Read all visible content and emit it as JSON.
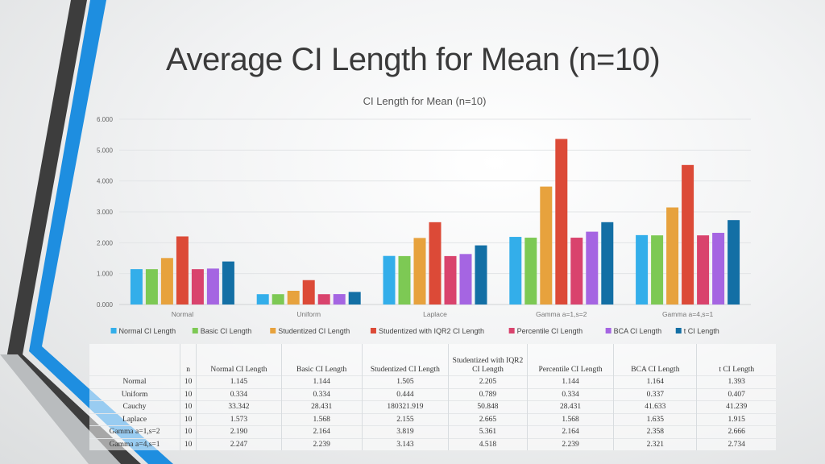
{
  "slide": {
    "title": "Average CI Length for Mean (n=10)"
  },
  "colors": {
    "normal": "#33aeea",
    "basic": "#7dc954",
    "studentized": "#e7a23d",
    "studentized_iqr": "#dc4a37",
    "percentile": "#d9436d",
    "bca": "#a565e2",
    "t": "#136fa5",
    "stripe_dark": "#3d3d3d",
    "stripe_blue": "#1e8ee0"
  },
  "chart_data": {
    "type": "bar",
    "title": "CI Length for Mean (n=10)",
    "categories": [
      "Normal",
      "Uniform",
      "Laplace",
      "Gamma a=1,s=2",
      "Gamma a=4,s=1"
    ],
    "ylim": [
      0,
      6
    ],
    "yticks": [
      "0.000",
      "1.000",
      "2.000",
      "3.000",
      "4.000",
      "5.000",
      "6.000"
    ],
    "grid": true,
    "legend_position": "bottom",
    "series": [
      {
        "name": "Normal CI Length",
        "color": "#33aeea",
        "values": [
          1.145,
          0.334,
          1.573,
          2.19,
          2.247
        ]
      },
      {
        "name": "Basic CI Length",
        "color": "#7dc954",
        "values": [
          1.144,
          0.334,
          1.568,
          2.164,
          2.239
        ]
      },
      {
        "name": "Studentized CI Length",
        "color": "#e7a23d",
        "values": [
          1.505,
          0.444,
          2.155,
          3.819,
          3.143
        ]
      },
      {
        "name": "Studentized with IQR2 CI Length",
        "color": "#dc4a37",
        "values": [
          2.205,
          0.789,
          2.665,
          5.361,
          4.518
        ]
      },
      {
        "name": "Percentile CI Length",
        "color": "#d9436d",
        "values": [
          1.144,
          0.334,
          1.568,
          2.164,
          2.239
        ]
      },
      {
        "name": "BCA CI Length",
        "color": "#a565e2",
        "values": [
          1.164,
          0.337,
          1.635,
          2.358,
          2.321
        ]
      },
      {
        "name": "t CI Length",
        "color": "#136fa5",
        "values": [
          1.393,
          0.407,
          1.915,
          2.666,
          2.734
        ]
      }
    ]
  },
  "table": {
    "headers": [
      "",
      "n",
      "Normal CI Length",
      "Basic CI Length",
      "Studentized CI Length",
      "Studentized with IQR2 CI Length",
      "Percentile CI Length",
      "BCA CI Length",
      "t CI Length"
    ],
    "rows": [
      [
        "Normal",
        "10",
        "1.145",
        "1.144",
        "1.505",
        "2.205",
        "1.144",
        "1.164",
        "1.393"
      ],
      [
        "Uniform",
        "10",
        "0.334",
        "0.334",
        "0.444",
        "0.789",
        "0.334",
        "0.337",
        "0.407"
      ],
      [
        "Cauchy",
        "10",
        "33.342",
        "28.431",
        "180321.919",
        "50.848",
        "28.431",
        "41.633",
        "41.239"
      ],
      [
        "Laplace",
        "10",
        "1.573",
        "1.568",
        "2.155",
        "2.665",
        "1.568",
        "1.635",
        "1.915"
      ],
      [
        "Gamma a=1,s=2",
        "10",
        "2.190",
        "2.164",
        "3.819",
        "5.361",
        "2.164",
        "2.358",
        "2.666"
      ],
      [
        "Gamma a=4,s=1",
        "10",
        "2.247",
        "2.239",
        "3.143",
        "4.518",
        "2.239",
        "2.321",
        "2.734"
      ]
    ]
  }
}
